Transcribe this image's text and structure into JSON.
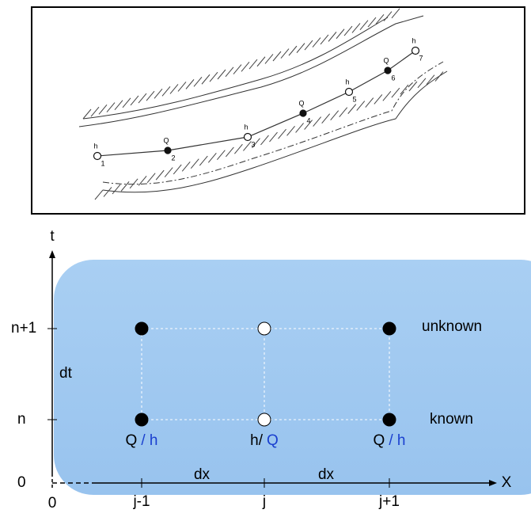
{
  "sketch": {
    "nodes": [
      {
        "var": "h",
        "label": "1"
      },
      {
        "var": "Q",
        "label": "2"
      },
      {
        "var": "h",
        "label": "3"
      },
      {
        "var": "Q",
        "label": "4"
      },
      {
        "var": "h",
        "label": "5"
      },
      {
        "var": "Q",
        "label": "6"
      },
      {
        "var": "h",
        "label": "7"
      }
    ]
  },
  "grid": {
    "t_axis": "t",
    "x_axis": "X",
    "time_levels": [
      "n+1",
      "n",
      "0"
    ],
    "origin": "0",
    "dt": "dt",
    "dx": [
      "dx",
      "dx"
    ],
    "columns": [
      "j-1",
      "j",
      "j+1"
    ],
    "row_labels": [
      "unknown",
      "known"
    ],
    "point_labels": [
      {
        "first": "Q",
        "second": "/ h"
      },
      {
        "first": "h/",
        "second": "Q"
      },
      {
        "first": "Q",
        "second": "/ h"
      }
    ]
  }
}
